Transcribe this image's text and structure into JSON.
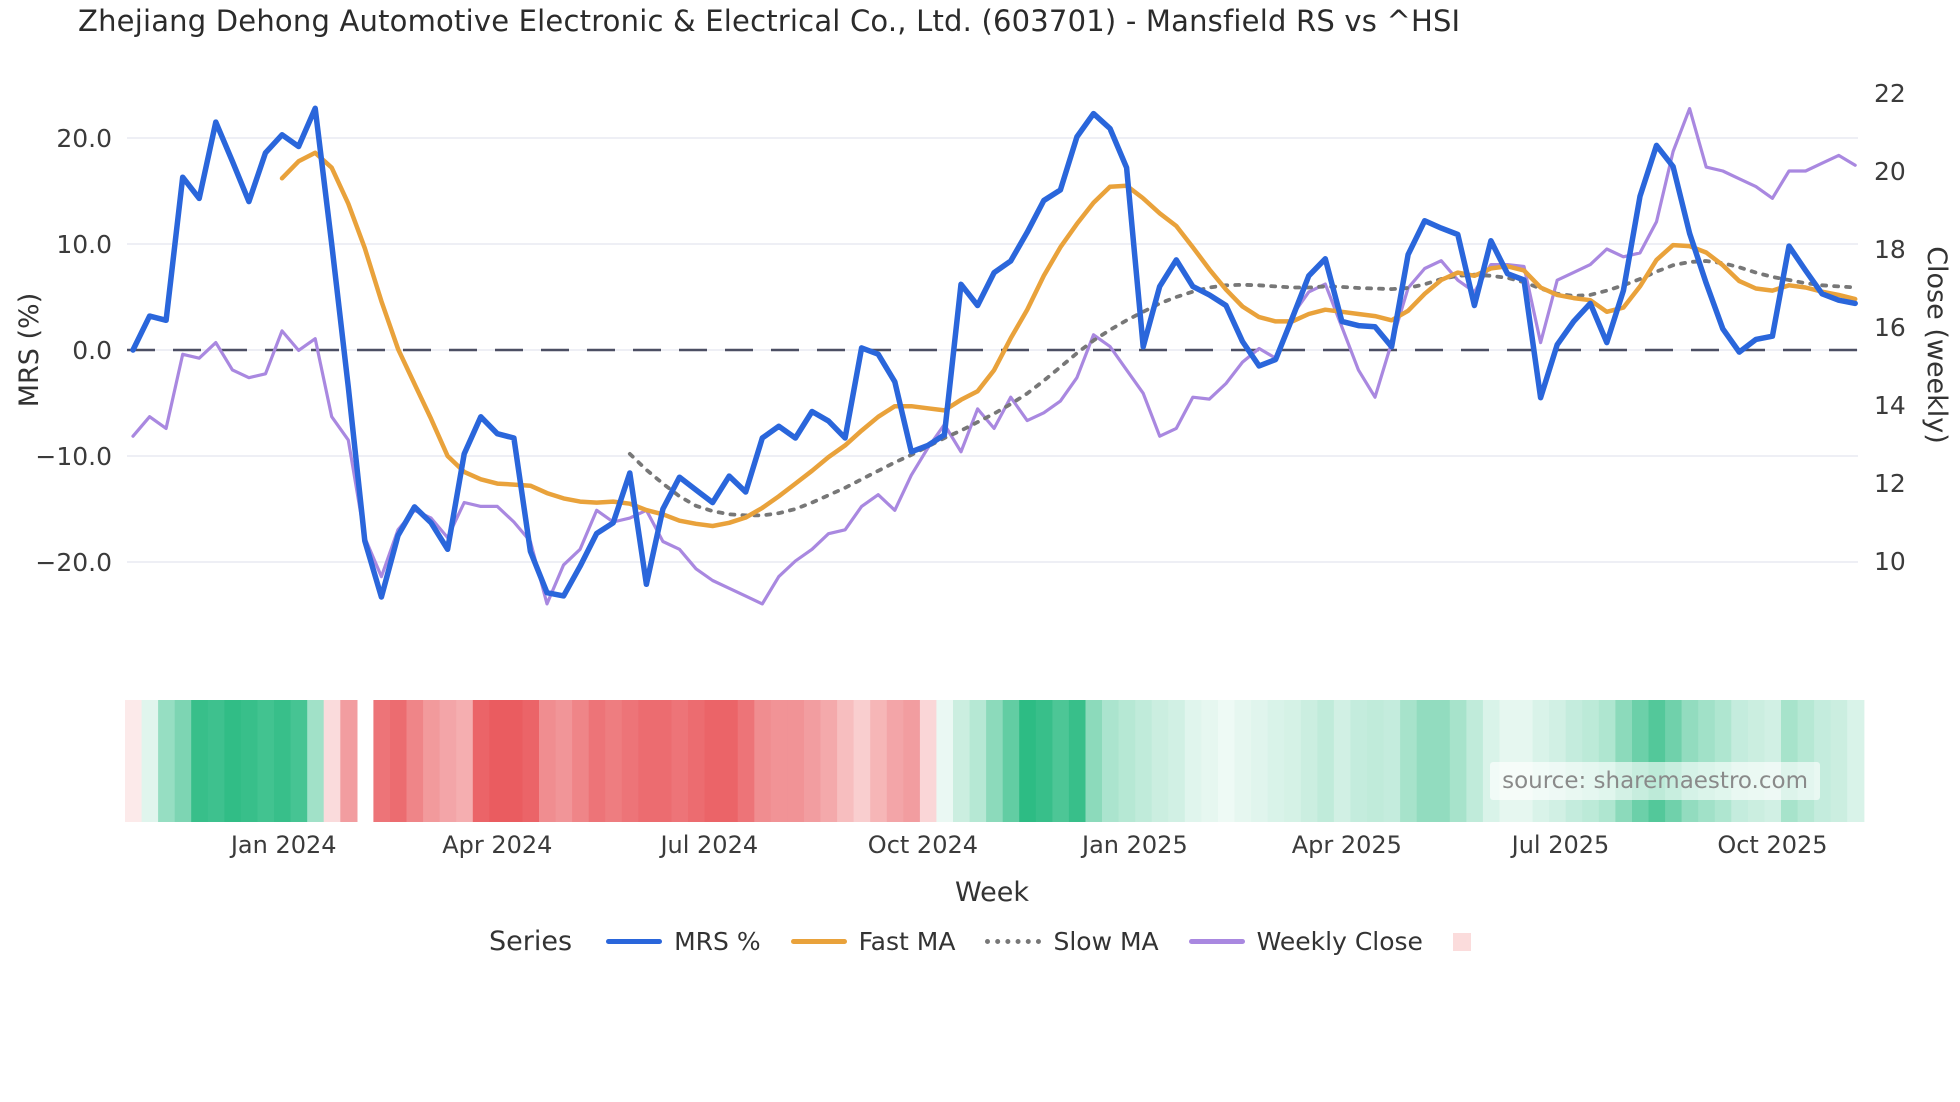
{
  "title": "Zhejiang Dehong Automotive Electronic & Electrical Co., Ltd. (603701) - Mansfield RS vs ^HSI",
  "source": "source: sharemaestro.com",
  "legend": {
    "title": "Series",
    "items": [
      {
        "label": "MRS %",
        "color": "#2a66db",
        "style": "solid"
      },
      {
        "label": "Fast MA",
        "color": "#e9a23b",
        "style": "solid"
      },
      {
        "label": "Slow MA",
        "color": "#777777",
        "style": "dotted"
      },
      {
        "label": "Weekly Close",
        "color": "#a988e0",
        "style": "solid"
      },
      {
        "label": "",
        "color": "#fbdcdc",
        "style": "square"
      }
    ]
  },
  "chart_data": {
    "type": "line",
    "title": "Zhejiang Dehong Automotive Electronic & Electrical Co., Ltd. (603701) - Mansfield RS vs ^HSI",
    "xlabel": "Week",
    "x_ticks": [
      {
        "label": "Jan 2024",
        "week": 9.1
      },
      {
        "label": "Apr 2024",
        "week": 22.0
      },
      {
        "label": "Jul 2024",
        "week": 34.8
      },
      {
        "label": "Oct 2024",
        "week": 47.7
      },
      {
        "label": "Jan 2025",
        "week": 60.5
      },
      {
        "label": "Apr 2025",
        "week": 73.3
      },
      {
        "label": "Jul 2025",
        "week": 86.2
      },
      {
        "label": "Oct 2025",
        "week": 99.0
      }
    ],
    "y_left": {
      "label": "MRS (%)",
      "tick_labels": [
        "20.0",
        "10.0",
        "0.0",
        "−10.0",
        "−20.0"
      ],
      "tick_values": [
        20,
        10,
        0,
        -10,
        -20
      ],
      "range": [
        -25,
        26
      ],
      "zero_dashed_line": true
    },
    "y_right": {
      "label": "Close (weekly)",
      "tick_labels": [
        "22",
        "20",
        "18",
        "16",
        "14",
        "12",
        "10"
      ],
      "tick_values": [
        22,
        20,
        18,
        16,
        14,
        12,
        10
      ]
    },
    "weeks_total": 105,
    "grid": "horizontal-light",
    "legend_position": "bottom-center",
    "series": [
      {
        "name": "MRS %",
        "axis": "left",
        "color": "#2a66db",
        "width": 5.5,
        "dash": null,
        "start": 0,
        "values": [
          0.0,
          3.2,
          2.8,
          16.3,
          14.3,
          21.5,
          17.8,
          14.0,
          18.6,
          20.3,
          19.2,
          22.8,
          10.0,
          -3.5,
          -18.0,
          -23.3,
          -17.5,
          -14.8,
          -16.3,
          -18.8,
          -9.8,
          -6.3,
          -7.9,
          -8.3,
          -19.0,
          -22.9,
          -23.2,
          -20.4,
          -17.3,
          -16.3,
          -11.6,
          -22.1,
          -15.0,
          -12.0,
          -13.2,
          -14.4,
          -11.9,
          -13.4,
          -8.3,
          -7.2,
          -8.3,
          -5.8,
          -6.7,
          -8.3,
          0.2,
          -0.4,
          -3.0,
          -9.6,
          -9.0,
          -8.0,
          6.2,
          4.2,
          7.3,
          8.4,
          11.1,
          14.1,
          15.1,
          20.1,
          22.3,
          20.9,
          17.2,
          0.3,
          6.0,
          8.5,
          6.0,
          5.2,
          4.2,
          0.8,
          -1.5,
          -0.9,
          3.0,
          7.0,
          8.6,
          2.7,
          2.3,
          2.2,
          0.3,
          9.0,
          12.2,
          11.5,
          10.9,
          4.2,
          10.3,
          7.2,
          6.6,
          -4.5,
          0.5,
          2.7,
          4.4,
          0.7,
          5.6,
          14.5,
          19.3,
          17.3,
          11.0,
          6.3,
          2.0,
          -0.2,
          1.0,
          1.3,
          9.8,
          7.5,
          5.3,
          4.7,
          4.4
        ]
      },
      {
        "name": "Fast MA",
        "axis": "left",
        "color": "#e9a23b",
        "width": 4.5,
        "dash": null,
        "start": 9,
        "values": [
          16.2,
          17.8,
          18.6,
          17.2,
          13.8,
          9.6,
          4.6,
          0.1,
          -3.2,
          -6.5,
          -10.0,
          -11.5,
          -12.2,
          -12.6,
          -12.7,
          -12.8,
          -13.5,
          -14.0,
          -14.3,
          -14.4,
          -14.3,
          -14.5,
          -15.1,
          -15.5,
          -16.1,
          -16.4,
          -16.6,
          -16.3,
          -15.8,
          -14.9,
          -13.8,
          -12.6,
          -11.4,
          -10.1,
          -9.0,
          -7.6,
          -6.3,
          -5.3,
          -5.3,
          -5.5,
          -5.7,
          -4.7,
          -3.9,
          -1.9,
          1.1,
          3.8,
          7.0,
          9.7,
          11.9,
          13.9,
          15.4,
          15.5,
          14.3,
          12.9,
          11.7,
          9.7,
          7.6,
          5.7,
          4.1,
          3.1,
          2.7,
          2.7,
          3.4,
          3.8,
          3.6,
          3.4,
          3.2,
          2.8,
          3.7,
          5.3,
          6.6,
          7.3,
          7.0,
          7.7,
          7.9,
          7.5,
          5.9,
          5.2,
          4.9,
          4.7,
          3.6,
          4.0,
          6.0,
          8.5,
          9.9,
          9.8,
          9.2,
          8.0,
          6.5,
          5.8,
          5.6,
          6.1,
          5.9,
          5.5,
          5.2,
          4.8
        ]
      },
      {
        "name": "Slow MA",
        "axis": "left",
        "color": "#777777",
        "width": 3.8,
        "dash": "4 8",
        "start": 30,
        "values": [
          -9.8,
          -11.3,
          -12.6,
          -13.8,
          -14.7,
          -15.2,
          -15.5,
          -15.6,
          -15.6,
          -15.4,
          -15.0,
          -14.4,
          -13.7,
          -13.0,
          -12.2,
          -11.4,
          -10.6,
          -9.9,
          -9.1,
          -8.3,
          -7.6,
          -6.8,
          -6.0,
          -5.1,
          -4.1,
          -2.9,
          -1.6,
          -0.3,
          0.9,
          1.9,
          2.8,
          3.6,
          4.4,
          5.0,
          5.5,
          5.9,
          6.1,
          6.15,
          6.1,
          6.0,
          5.9,
          5.9,
          6.0,
          5.95,
          5.85,
          5.8,
          5.75,
          5.85,
          6.2,
          6.7,
          7.0,
          7.1,
          7.0,
          6.8,
          6.4,
          5.8,
          5.3,
          5.1,
          5.2,
          5.6,
          6.1,
          6.7,
          7.4,
          8.0,
          8.3,
          8.4,
          8.2,
          7.8,
          7.3,
          6.9,
          6.6,
          6.3,
          6.1,
          6.0,
          5.9
        ]
      },
      {
        "name": "Weekly Close",
        "axis": "right",
        "color": "#a988e0",
        "width": 3.2,
        "dash": null,
        "start": 0,
        "values": [
          13.2,
          13.7,
          13.4,
          15.3,
          15.2,
          15.6,
          14.9,
          14.7,
          14.8,
          15.9,
          15.4,
          15.7,
          13.7,
          13.1,
          10.6,
          9.6,
          10.8,
          11.3,
          11.1,
          10.6,
          11.5,
          11.4,
          11.4,
          11.0,
          10.5,
          8.9,
          9.9,
          10.3,
          11.3,
          11.0,
          11.1,
          11.3,
          10.5,
          10.3,
          9.8,
          9.5,
          9.3,
          9.1,
          8.9,
          9.6,
          10.0,
          10.3,
          10.7,
          10.8,
          11.4,
          11.7,
          11.3,
          12.2,
          12.9,
          13.5,
          12.8,
          13.9,
          13.4,
          14.2,
          13.6,
          13.8,
          14.1,
          14.7,
          15.8,
          15.5,
          14.9,
          14.3,
          13.2,
          13.4,
          14.2,
          14.15,
          14.55,
          15.1,
          15.45,
          15.2,
          16.3,
          16.9,
          17.1,
          16.0,
          14.9,
          14.2,
          15.6,
          17.0,
          17.5,
          17.7,
          17.2,
          16.9,
          17.6,
          17.6,
          17.55,
          15.6,
          17.2,
          17.4,
          17.6,
          18.0,
          17.8,
          17.9,
          18.7,
          20.5,
          21.6,
          20.1,
          20.0,
          19.8,
          19.6,
          19.3,
          20.0,
          20.0,
          20.2,
          20.4,
          20.15
        ]
      }
    ],
    "heatmap": {
      "description": "weekly relative-strength color strip, -1 strong red to +1 strong green, null = gap",
      "positive_color": "#2dbc84",
      "negative_color": "#ea5c60",
      "values": [
        -0.13,
        0.15,
        0.5,
        0.62,
        0.95,
        0.92,
        0.98,
        0.95,
        0.9,
        0.95,
        0.88,
        0.45,
        -0.22,
        -0.6,
        null,
        -0.85,
        -0.9,
        -0.75,
        -0.62,
        -0.55,
        -0.5,
        -0.95,
        -1.0,
        -1.0,
        -0.95,
        -0.7,
        -0.65,
        -0.75,
        -0.85,
        -0.8,
        -0.85,
        -0.9,
        -0.9,
        -0.85,
        -0.9,
        -0.95,
        -0.95,
        -0.85,
        -0.7,
        -0.66,
        -0.66,
        -0.6,
        -0.53,
        -0.4,
        -0.3,
        -0.45,
        -0.55,
        -0.6,
        -0.25,
        0.1,
        0.25,
        0.35,
        0.55,
        0.75,
        1.0,
        0.95,
        0.85,
        0.95,
        0.55,
        0.4,
        0.35,
        0.3,
        0.25,
        0.22,
        0.15,
        0.12,
        0.08,
        0.12,
        0.15,
        0.18,
        0.2,
        0.25,
        0.3,
        0.22,
        0.28,
        0.3,
        0.28,
        0.42,
        0.52,
        0.52,
        0.42,
        0.3,
        0.18,
        0.12,
        0.12,
        0.18,
        0.22,
        0.28,
        0.32,
        0.38,
        0.55,
        0.7,
        0.82,
        0.68,
        0.52,
        0.45,
        0.38,
        0.28,
        0.25,
        0.22,
        0.42,
        0.35,
        0.28,
        0.25,
        0.18
      ]
    }
  }
}
